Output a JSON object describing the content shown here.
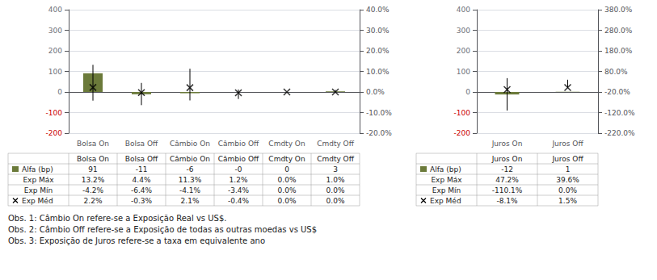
{
  "chart_data": [
    {
      "type": "bar",
      "categories": [
        "Bolsa On",
        "Bolsa Off",
        "Câmbio On",
        "Câmbio Off",
        "Cmdty On",
        "Cmdty Off"
      ],
      "ylim": [
        -200,
        400
      ],
      "yticks": [
        -200,
        -100,
        0,
        100,
        200,
        300,
        400
      ],
      "y2lim": [
        -20.0,
        40.0
      ],
      "y2ticks": [
        {
          "value": -20.0,
          "label": "-20.0%"
        },
        {
          "value": -10.0,
          "label": "-10.0%"
        },
        {
          "value": 0.0,
          "label": "0.0%"
        },
        {
          "value": 10.0,
          "label": "10.0%"
        },
        {
          "value": 20.0,
          "label": "20.0%"
        },
        {
          "value": 30.0,
          "label": "30.0%"
        },
        {
          "value": 40.0,
          "label": "40.0%"
        }
      ],
      "grid": true,
      "data_labels": true,
      "series": [
        {
          "name": "Alfa (bp)",
          "type": "bar",
          "color": "#6b7a3a",
          "values": [
            91,
            -11,
            -6,
            0,
            0,
            3
          ],
          "value_labels": [
            "91",
            "-11",
            "-6",
            "-0",
            "0",
            "3"
          ]
        },
        {
          "name": "Exp Máx",
          "type": "range",
          "axis": "y2",
          "color": "#000000",
          "values": [
            13.2,
            4.4,
            11.3,
            1.2,
            0.0,
            1.0
          ],
          "value_labels": [
            "13.2%",
            "4.4%",
            "11.3%",
            "1.2%",
            "0.0%",
            "1.0%"
          ]
        },
        {
          "name": "Exp Mín",
          "type": "range",
          "axis": "y2",
          "color": "#000000",
          "values": [
            -4.2,
            -6.4,
            -4.1,
            -3.4,
            0.0,
            0.0
          ],
          "value_labels": [
            "-4.2%",
            "-6.4%",
            "-4.1%",
            "-3.4%",
            "0.0%",
            "0.0%"
          ]
        },
        {
          "name": "Exp Méd",
          "type": "scatter",
          "marker": "x",
          "axis": "y2",
          "color": "#000000",
          "values": [
            2.2,
            -0.3,
            2.1,
            -0.4,
            0.0,
            0.0
          ],
          "value_labels": [
            "2.2%",
            "-0.3%",
            "2.1%",
            "-0.4%",
            "0.0%",
            "0.0%"
          ]
        }
      ]
    },
    {
      "type": "bar",
      "categories": [
        "Juros On",
        "Juros Off"
      ],
      "ylim": [
        -200,
        400
      ],
      "yticks": [
        -200,
        -100,
        0,
        100,
        200,
        300,
        400
      ],
      "y2lim": [
        -220.0,
        380.0
      ],
      "y2ticks": [
        {
          "value": -220.0,
          "label": "-220.0%"
        },
        {
          "value": -120.0,
          "label": "-120.0%"
        },
        {
          "value": -20.0,
          "label": "-20.0%"
        },
        {
          "value": 80.0,
          "label": "80.0%"
        },
        {
          "value": 180.0,
          "label": "180.0%"
        },
        {
          "value": 280.0,
          "label": "280.0%"
        },
        {
          "value": 380.0,
          "label": "380.0%"
        }
      ],
      "grid": true,
      "data_labels": true,
      "series": [
        {
          "name": "Alfa (bp)",
          "type": "bar",
          "color": "#6b7a3a",
          "values": [
            -12,
            1
          ],
          "value_labels": [
            "-12",
            "1"
          ]
        },
        {
          "name": "Exp Máx",
          "type": "range",
          "axis": "y2",
          "color": "#000000",
          "values": [
            47.2,
            39.6
          ],
          "value_labels": [
            "47.2%",
            "39.6%"
          ]
        },
        {
          "name": "Exp Mín",
          "type": "range",
          "axis": "y2",
          "color": "#000000",
          "values": [
            -110.1,
            0.0
          ],
          "value_labels": [
            "-110.1%",
            "0.0%"
          ]
        },
        {
          "name": "Exp Méd",
          "type": "scatter",
          "marker": "x",
          "axis": "y2",
          "color": "#000000",
          "values": [
            -8.1,
            1.5
          ],
          "value_labels": [
            "-8.1%",
            "1.5%"
          ]
        }
      ]
    }
  ],
  "annotations": [
    "Obs. 1: Câmbio On refere-se a Exposição Real vs US$.",
    "Obs. 2: Câmbio Off refere-se a Exposição de todas as outras moedas vs US$",
    "Obs. 3: Exposição de Juros refere-se a taxa em equivalente ano"
  ]
}
